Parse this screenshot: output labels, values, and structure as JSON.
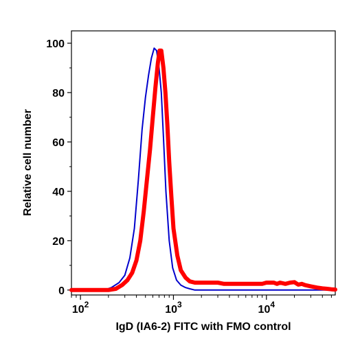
{
  "chart_data": {
    "type": "line",
    "title": "",
    "xlabel": "IgD (IA6-2) FITC with FMO control",
    "ylabel": "Relative cell number",
    "x_scale": "log",
    "xlim": [
      80,
      55000
    ],
    "ylim": [
      -2,
      105
    ],
    "y_ticks": [
      0,
      20,
      40,
      60,
      80,
      100
    ],
    "y_tick_labels": [
      "0",
      "20",
      "40",
      "60",
      "80",
      "100"
    ],
    "x_ticks": [
      {
        "value": 100,
        "base": "10",
        "exp": "2"
      },
      {
        "value": 1000,
        "base": "10",
        "exp": "3"
      },
      {
        "value": 10000,
        "base": "10",
        "exp": "4"
      }
    ],
    "grid": false,
    "legend": "none",
    "series": [
      {
        "color": "#0000cc",
        "width": "thin",
        "x": [
          80,
          180,
          215,
          260,
          300,
          340,
          380,
          420,
          460,
          500,
          540,
          580,
          620,
          660,
          700,
          740,
          780,
          830,
          900,
          980,
          1080,
          1200,
          1350,
          1500,
          1700,
          1800,
          2000,
          5000,
          55000
        ],
        "y": [
          0,
          0,
          1,
          3,
          6,
          13,
          25,
          45,
          65,
          78,
          87,
          94,
          98,
          97,
          90,
          80,
          62,
          40,
          20,
          9,
          4,
          2,
          1,
          0.5,
          0,
          0,
          0,
          0,
          0
        ]
      },
      {
        "color": "#ff0000",
        "width": "thick",
        "x": [
          80,
          200,
          240,
          280,
          320,
          360,
          400,
          440,
          480,
          520,
          560,
          600,
          640,
          680,
          710,
          740,
          780,
          820,
          860,
          900,
          950,
          1000,
          1100,
          1200,
          1350,
          1500,
          1700,
          2000,
          2500,
          3000,
          3500,
          4000,
          5000,
          6000,
          7000,
          8000,
          9000,
          10000,
          11000,
          12000,
          13000,
          14000,
          16000,
          18000,
          20000,
          22000,
          24000,
          26000,
          30000,
          35000,
          40000,
          45000,
          50000,
          55000
        ],
        "y": [
          0,
          0,
          0.5,
          2,
          4,
          7,
          12,
          20,
          32,
          45,
          57,
          70,
          82,
          92,
          97,
          97,
          90,
          80,
          67,
          52,
          38,
          25,
          14,
          8,
          5,
          3.5,
          3,
          3,
          3,
          3,
          2.5,
          2.5,
          2.5,
          2.5,
          2.5,
          2.5,
          2.5,
          3,
          3,
          3,
          2.5,
          3,
          2.5,
          3,
          3.2,
          2.2,
          2.5,
          2,
          1.5,
          1,
          0.7,
          0.5,
          0.3,
          0.2
        ]
      }
    ]
  }
}
